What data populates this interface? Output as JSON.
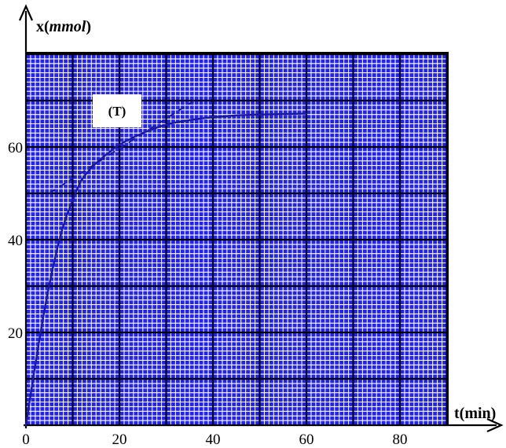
{
  "chart_data": {
    "type": "line",
    "title": "",
    "xlabel": "t(min)",
    "ylabel_prefix": "x(",
    "ylabel_unit": "mmol",
    "ylabel_suffix": ")",
    "xlim": [
      0,
      90
    ],
    "ylim": [
      0,
      80
    ],
    "x_ticks": [
      0,
      20,
      40,
      60,
      80
    ],
    "y_ticks": [
      20,
      40,
      60
    ],
    "grid": "fine blue graph-paper grid, minor every 1 unit, major every 10 units",
    "series": [
      {
        "line_style": "solid",
        "color": "#1a1a9a",
        "x": [
          0,
          2,
          4,
          6,
          8,
          10,
          12,
          15,
          18,
          20,
          25,
          30,
          35,
          40,
          45,
          50,
          55,
          60
        ],
        "y": [
          0,
          13,
          25,
          35,
          43,
          48.5,
          53,
          56.5,
          59,
          60.5,
          63,
          64.8,
          65.8,
          66.4,
          66.8,
          67,
          67.1,
          67.2
        ]
      }
    ],
    "tangent": {
      "label": "(T)",
      "line_style": "dashed",
      "x": [
        5,
        36
      ],
      "y": [
        50,
        70
      ]
    },
    "colors": {
      "grid_background": "#2323f0",
      "grid_minor": "#ffffff",
      "grid_major": "#000000",
      "curve": "#1a1a9a"
    }
  }
}
